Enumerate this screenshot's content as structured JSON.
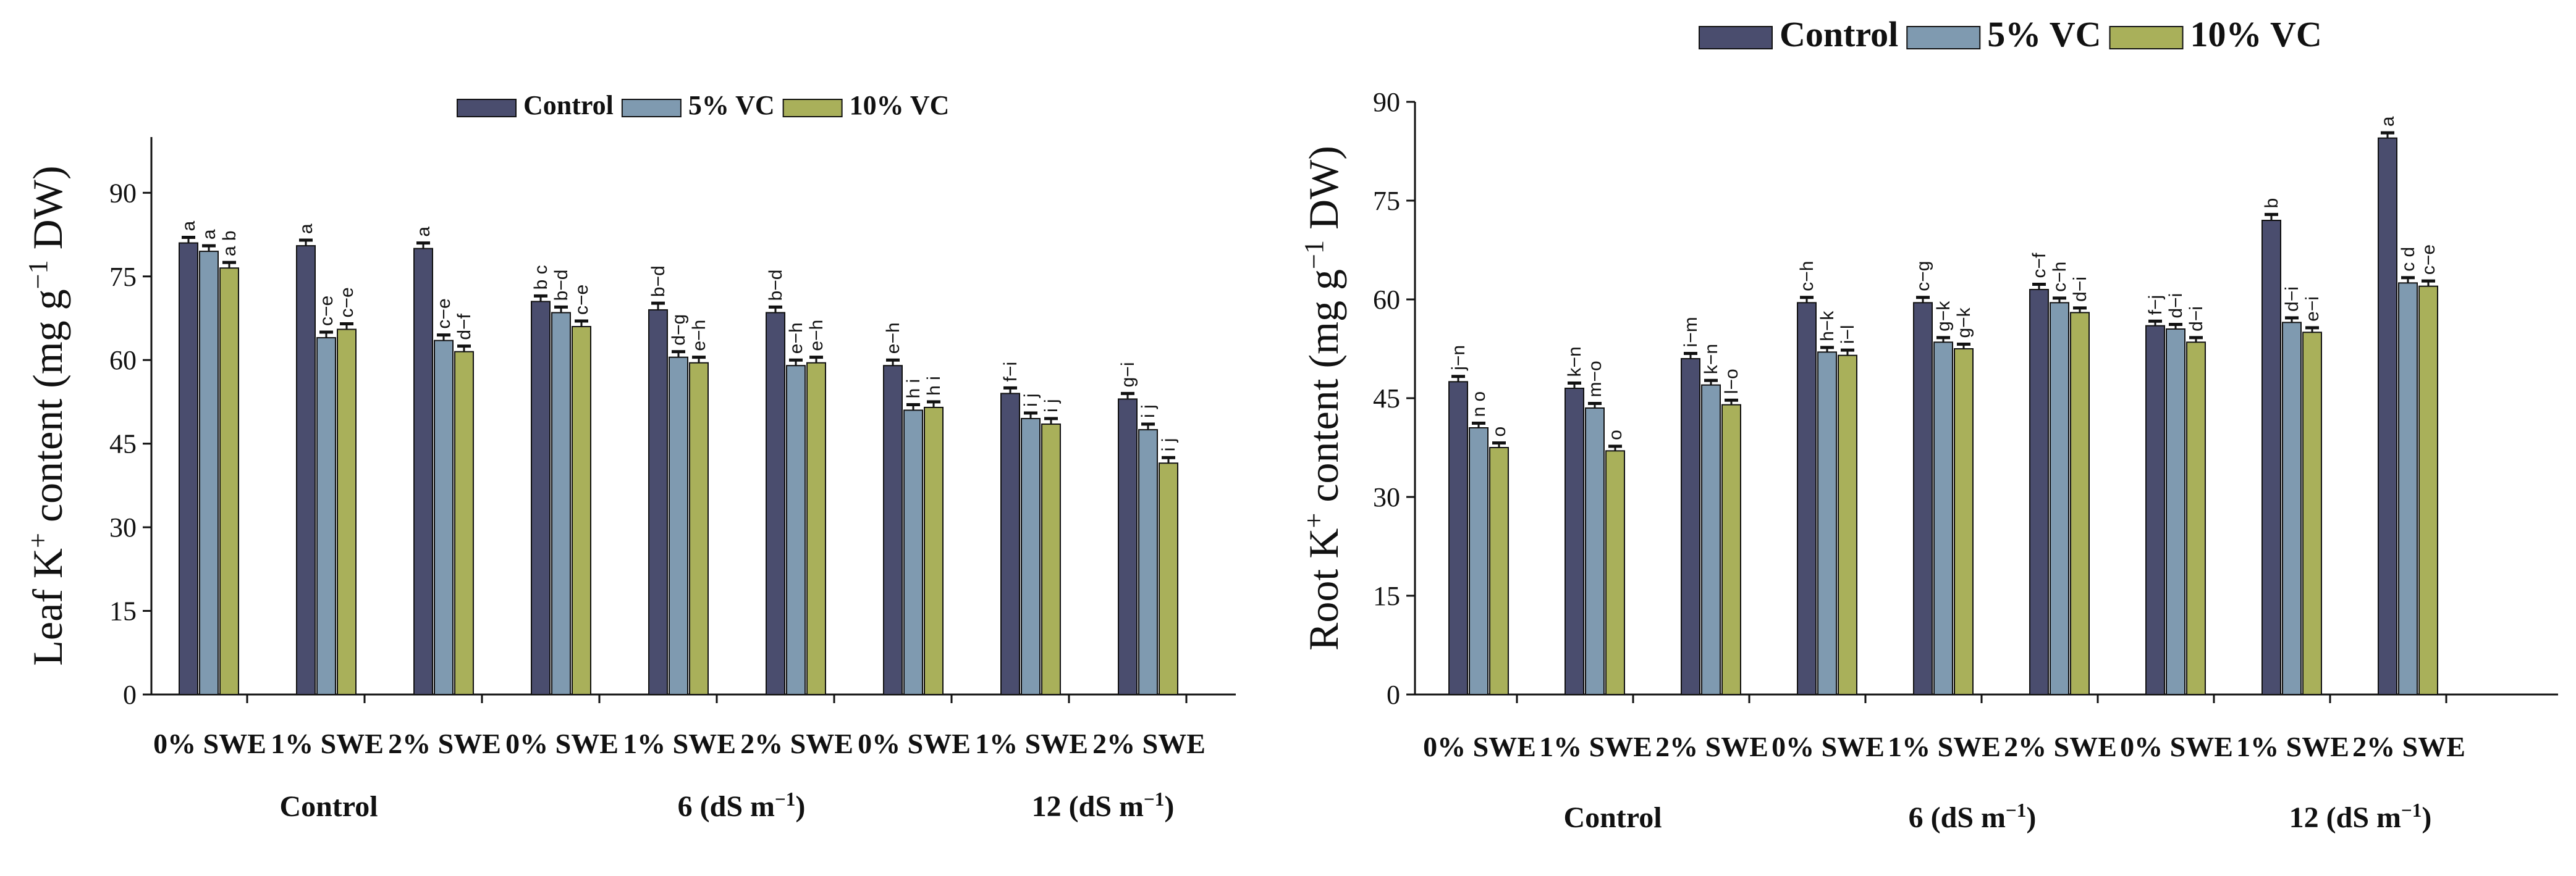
{
  "colors": {
    "Control": "#4a4d6e",
    "5% VC": "#7f9ab0",
    "10% VC": "#a9b05a"
  },
  "chart_data": [
    {
      "type": "bar",
      "name": "left",
      "title": "",
      "ylabel": "Leaf K⁺ content (mg g⁻¹ DW)",
      "ylabel_parts": {
        "main": "Leaf K",
        "sup1": "+",
        "mid": " content (mg g",
        "sup2": "−1",
        "end": " DW)"
      },
      "ylim": [
        0,
        100
      ],
      "yticks": [
        0,
        15,
        30,
        45,
        60,
        75,
        90
      ],
      "legend": [
        "Control",
        "5% VC",
        "10% VC"
      ],
      "legend_position": "top-center",
      "categories": [
        "0% SWE",
        "1% SWE",
        "2% SWE",
        "0% SWE",
        "1% SWE",
        "2% SWE",
        "0% SWE",
        "1% SWE",
        "2% SWE"
      ],
      "groups": [
        {
          "label": "Control",
          "parts": {
            "main": "Control",
            "sup": "",
            "end": ""
          }
        },
        {
          "label": "6 (dS m⁻¹)",
          "parts": {
            "main": "6 (dS m",
            "sup": "−1",
            "end": ")"
          }
        },
        {
          "label": "12 (dS m⁻¹)",
          "parts": {
            "main": "12 (dS m",
            "sup": "−1",
            "end": ")"
          }
        }
      ],
      "series": [
        {
          "name": "Control",
          "values": [
            81,
            80.5,
            80,
            70.5,
            69,
            68.5,
            59,
            54,
            53
          ],
          "errors": [
            1,
            1,
            1,
            1,
            1.2,
            1,
            1,
            1,
            1
          ],
          "letters": [
            "a",
            "a",
            "a",
            "b c",
            "b−d",
            "b−d",
            "e−h",
            "f−i",
            "g−i"
          ]
        },
        {
          "name": "5% VC",
          "values": [
            79.5,
            64,
            63.5,
            68.5,
            60.5,
            59,
            51,
            49.5,
            47.5
          ],
          "errors": [
            1,
            1,
            1,
            1,
            1,
            1,
            1,
            1,
            1
          ],
          "letters": [
            "a",
            "c−e",
            "c−e",
            "b−d",
            "d−g",
            "e−h",
            "h i",
            "i j",
            "i j"
          ]
        },
        {
          "name": "10% VC",
          "values": [
            76.5,
            65.5,
            61.5,
            66,
            59.5,
            59.5,
            51.5,
            48.5,
            41.5
          ],
          "errors": [
            1,
            1,
            1,
            1,
            1,
            1,
            1,
            1,
            1
          ],
          "letters": [
            "a b",
            "c−e",
            "d−f",
            "c−e",
            "e−h",
            "e−h",
            "h i",
            "i j",
            "i j"
          ]
        }
      ]
    },
    {
      "type": "bar",
      "name": "right",
      "title": "",
      "ylabel": "Root K⁺ content (mg g⁻¹ DW)",
      "ylabel_parts": {
        "main": "Root K",
        "sup1": "+",
        "mid": " content (mg g",
        "sup2": "−1",
        "end": " DW)"
      },
      "ylim": [
        0,
        90
      ],
      "yticks": [
        0,
        15,
        30,
        45,
        60,
        75,
        90
      ],
      "legend": [
        "Control",
        "5% VC",
        "10% VC"
      ],
      "legend_position": "top-center",
      "categories": [
        "0% SWE",
        "1% SWE",
        "2% SWE",
        "0% SWE",
        "1% SWE",
        "2% SWE",
        "0% SWE",
        "1% SWE",
        "2% SWE"
      ],
      "groups": [
        {
          "label": "Control",
          "parts": {
            "main": "Control",
            "sup": "",
            "end": ""
          }
        },
        {
          "label": "6 (dS m⁻¹)",
          "parts": {
            "main": "6 (dS m",
            "sup": "−1",
            "end": ")"
          }
        },
        {
          "label": "12 (dS m⁻¹)",
          "parts": {
            "main": "12 (dS m",
            "sup": "−1",
            "end": ")"
          }
        }
      ],
      "series": [
        {
          "name": "Control",
          "values": [
            47.5,
            46.5,
            51,
            59.5,
            59.5,
            61.5,
            56,
            72,
            84.5
          ],
          "errors": [
            0.8,
            0.8,
            0.8,
            0.8,
            0.8,
            0.8,
            0.7,
            0.9,
            0.8
          ],
          "letters": [
            "j−n",
            "k−n",
            "i−m",
            "c−h",
            "c−g",
            "c−f",
            "f−j",
            "b",
            "a"
          ]
        },
        {
          "name": "5% VC",
          "values": [
            40.5,
            43.5,
            47,
            52,
            53.5,
            59.5,
            55.5,
            56.5,
            62.5
          ],
          "errors": [
            0.7,
            0.7,
            0.7,
            0.7,
            0.7,
            0.7,
            0.7,
            0.7,
            0.8
          ],
          "letters": [
            "n o",
            "m−o",
            "k−n",
            "h−k",
            "g−k",
            "c−h",
            "d−i",
            "d−i",
            "c d"
          ]
        },
        {
          "name": "10% VC",
          "values": [
            37.5,
            37,
            44,
            51.5,
            52.5,
            58,
            53.5,
            55,
            62
          ],
          "errors": [
            0.7,
            0.7,
            0.7,
            0.8,
            0.7,
            0.7,
            0.7,
            0.7,
            0.8
          ],
          "letters": [
            "o",
            "o",
            "l−o",
            "i−l",
            "g−k",
            "d−i",
            "d−i",
            "e−i",
            "c−e"
          ]
        }
      ]
    }
  ]
}
